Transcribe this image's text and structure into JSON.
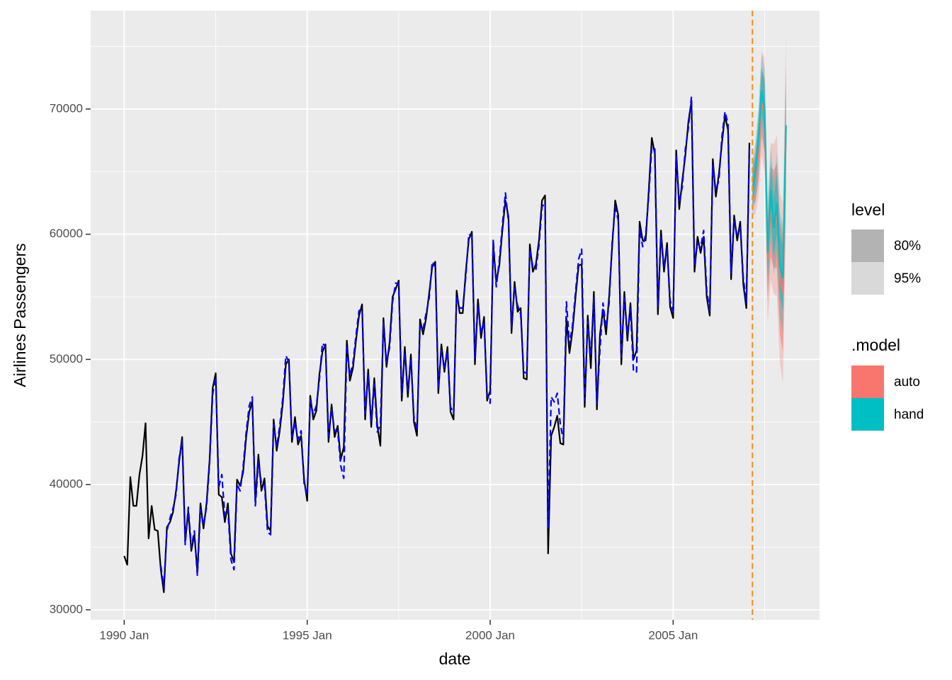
{
  "chart_data": {
    "type": "line",
    "xlabel": "date",
    "ylabel": "Airlines Passengers",
    "xlim": [
      "1989 Feb",
      "2009 Jan"
    ],
    "xticks": [
      "1990 Jan",
      "1995 Jan",
      "2000 Jan",
      "2005 Jan"
    ],
    "xminor_ticks": [
      "1992 Jul",
      "1997 Jul",
      "2002 Jul",
      "2007 Jul"
    ],
    "ylim": [
      29200,
      77860
    ],
    "yticks": [
      30000,
      40000,
      50000,
      60000,
      70000
    ],
    "yminor_ticks": [
      35000,
      45000,
      55000,
      65000,
      75000
    ],
    "grid": true,
    "vline": "2007 Mar",
    "vline_color": "#f5951d",
    "x": [
      "1990 Jan",
      "1990 Feb",
      "1990 Mar",
      "1990 Apr",
      "1990 May",
      "1990 Jun",
      "1990 Jul",
      "1990 Aug",
      "1990 Sep",
      "1990 Oct",
      "1990 Nov",
      "1990 Dec",
      "1991 Jan",
      "1991 Feb",
      "1991 Mar",
      "1991 Apr",
      "1991 May",
      "1991 Jun",
      "1991 Jul",
      "1991 Aug",
      "1991 Sep",
      "1991 Oct",
      "1991 Nov",
      "1991 Dec",
      "1992 Jan",
      "1992 Feb",
      "1992 Mar",
      "1992 Apr",
      "1992 May",
      "1992 Jun",
      "1992 Jul",
      "1992 Aug",
      "1992 Sep",
      "1992 Oct",
      "1992 Nov",
      "1992 Dec",
      "1993 Jan",
      "1993 Feb",
      "1993 Mar",
      "1993 Apr",
      "1993 May",
      "1993 Jun",
      "1993 Jul",
      "1993 Aug",
      "1993 Sep",
      "1993 Oct",
      "1993 Nov",
      "1993 Dec",
      "1994 Jan",
      "1994 Feb",
      "1994 Mar",
      "1994 Apr",
      "1994 May",
      "1994 Jun",
      "1994 Jul",
      "1994 Aug",
      "1994 Sep",
      "1994 Oct",
      "1994 Nov",
      "1994 Dec",
      "1995 Jan",
      "1995 Feb",
      "1995 Mar",
      "1995 Apr",
      "1995 May",
      "1995 Jun",
      "1995 Jul",
      "1995 Aug",
      "1995 Sep",
      "1995 Oct",
      "1995 Nov",
      "1995 Dec",
      "1996 Jan",
      "1996 Feb",
      "1996 Mar",
      "1996 Apr",
      "1996 May",
      "1996 Jun",
      "1996 Jul",
      "1996 Aug",
      "1996 Sep",
      "1996 Oct",
      "1996 Nov",
      "1996 Dec",
      "1997 Jan",
      "1997 Feb",
      "1997 Mar",
      "1997 Apr",
      "1997 May",
      "1997 Jun",
      "1997 Jul",
      "1997 Aug",
      "1997 Sep",
      "1997 Oct",
      "1997 Nov",
      "1997 Dec",
      "1998 Jan",
      "1998 Feb",
      "1998 Mar",
      "1998 Apr",
      "1998 May",
      "1998 Jun",
      "1998 Jul",
      "1998 Aug",
      "1998 Sep",
      "1998 Oct",
      "1998 Nov",
      "1998 Dec",
      "1999 Jan",
      "1999 Feb",
      "1999 Mar",
      "1999 Apr",
      "1999 May",
      "1999 Jun",
      "1999 Jul",
      "1999 Aug",
      "1999 Sep",
      "1999 Oct",
      "1999 Nov",
      "1999 Dec",
      "2000 Jan",
      "2000 Feb",
      "2000 Mar",
      "2000 Apr",
      "2000 May",
      "2000 Jun",
      "2000 Jul",
      "2000 Aug",
      "2000 Sep",
      "2000 Oct",
      "2000 Nov",
      "2000 Dec",
      "2001 Jan",
      "2001 Feb",
      "2001 Mar",
      "2001 Apr",
      "2001 May",
      "2001 Jun",
      "2001 Jul",
      "2001 Aug",
      "2001 Sep",
      "2001 Oct",
      "2001 Nov",
      "2001 Dec",
      "2002 Jan",
      "2002 Feb",
      "2002 Mar",
      "2002 Apr",
      "2002 May",
      "2002 Jun",
      "2002 Jul",
      "2002 Aug",
      "2002 Sep",
      "2002 Oct",
      "2002 Nov",
      "2002 Dec",
      "2003 Jan",
      "2003 Feb",
      "2003 Mar",
      "2003 Apr",
      "2003 May",
      "2003 Jun",
      "2003 Jul",
      "2003 Aug",
      "2003 Sep",
      "2003 Oct",
      "2003 Nov",
      "2003 Dec",
      "2004 Jan",
      "2004 Feb",
      "2004 Mar",
      "2004 Apr",
      "2004 May",
      "2004 Jun",
      "2004 Jul",
      "2004 Aug",
      "2004 Sep",
      "2004 Oct",
      "2004 Nov",
      "2004 Dec",
      "2005 Jan",
      "2005 Feb",
      "2005 Mar",
      "2005 Apr",
      "2005 May",
      "2005 Jun",
      "2005 Jul",
      "2005 Aug",
      "2005 Sep",
      "2005 Oct",
      "2005 Nov",
      "2005 Dec",
      "2006 Jan",
      "2006 Feb",
      "2006 Mar",
      "2006 Apr",
      "2006 May",
      "2006 Jun",
      "2006 Jul",
      "2006 Aug",
      "2006 Sep",
      "2006 Oct",
      "2006 Nov",
      "2006 Dec",
      "2007 Jan",
      "2007 Feb"
    ],
    "series": [
      {
        "color": "#000000",
        "dash": false,
        "values": [
          34300,
          33600,
          40600,
          38300,
          38300,
          40800,
          42300,
          44900,
          35700,
          38300,
          36400,
          36300,
          33200,
          31400,
          36600,
          37000,
          37800,
          39500,
          41800,
          43800,
          35500,
          37900,
          34700,
          36000,
          33000,
          38500,
          36500,
          38500,
          42000,
          47700,
          48900,
          39200,
          39000,
          37000,
          38500,
          34500,
          33800,
          40400,
          39900,
          41000,
          43800,
          45800,
          46600,
          38600,
          42400,
          39500,
          40500,
          36700,
          36300,
          45200,
          42700,
          44300,
          46500,
          49600,
          50000,
          43400,
          45400,
          43200,
          43900,
          40400,
          38700,
          47100,
          45200,
          45900,
          48800,
          50600,
          51200,
          43400,
          46400,
          43800,
          44700,
          42000,
          43000,
          51500,
          48300,
          49300,
          51500,
          53500,
          54400,
          45200,
          49200,
          44600,
          48500,
          44700,
          43100,
          53300,
          49400,
          51300,
          55000,
          55600,
          56300,
          46700,
          51000,
          47000,
          50400,
          45000,
          43900,
          53200,
          52000,
          53300,
          55300,
          57400,
          57800,
          47300,
          51200,
          49000,
          51000,
          45800,
          45200,
          55500,
          53700,
          53700,
          57000,
          59600,
          60200,
          49600,
          54800,
          51700,
          53400,
          46700,
          47500,
          59100,
          56200,
          57500,
          60300,
          62700,
          61400,
          52100,
          56200,
          53800,
          54100,
          48500,
          48400,
          59200,
          57000,
          57600,
          59500,
          62700,
          63100,
          34500,
          43900,
          44600,
          45500,
          43300,
          43200,
          53300,
          50500,
          52300,
          55000,
          57500,
          57600,
          46200,
          53500,
          49300,
          55400,
          46000,
          52000,
          54000,
          52000,
          55000,
          59000,
          62700,
          61500,
          49600,
          55400,
          51500,
          54500,
          50000,
          50700,
          61000,
          59500,
          59500,
          63500,
          67700,
          66400,
          53600,
          60300,
          57000,
          59300,
          54200,
          53300,
          66700,
          62000,
          64300,
          66300,
          69000,
          70600,
          57000,
          59800,
          58500,
          59800,
          55000,
          53500,
          66000,
          63000,
          64800,
          67300,
          69500,
          68300,
          56400,
          61500,
          59500,
          61000,
          56000,
          54100,
          67300
        ]
      },
      {
        "color": "#0000ff",
        "dash": true,
        "values": [
          null,
          null,
          null,
          null,
          null,
          null,
          null,
          null,
          null,
          null,
          null,
          null,
          33500,
          31800,
          36300,
          37300,
          38100,
          39200,
          42100,
          43500,
          35200,
          38200,
          35000,
          36300,
          32700,
          38000,
          36800,
          38200,
          41700,
          47200,
          48600,
          39800,
          40800,
          37500,
          38000,
          34000,
          33200,
          40000,
          39500,
          41400,
          44200,
          46300,
          47000,
          38300,
          41800,
          40100,
          40000,
          36200,
          36000,
          44800,
          43000,
          44700,
          46900,
          50300,
          49800,
          43800,
          44900,
          43600,
          44300,
          40000,
          39200,
          46700,
          45600,
          46300,
          48400,
          51300,
          51000,
          43900,
          46000,
          44300,
          44300,
          41500,
          40500,
          51100,
          48700,
          49700,
          51900,
          53900,
          54000,
          45700,
          48700,
          45100,
          48000,
          44200,
          44800,
          52900,
          49800,
          50900,
          54600,
          56100,
          56000,
          47200,
          50500,
          47500,
          50000,
          45400,
          44300,
          52700,
          52400,
          53700,
          54900,
          57800,
          57400,
          47700,
          50700,
          49400,
          50600,
          46200,
          45700,
          55100,
          54100,
          54100,
          56600,
          60000,
          59800,
          50100,
          54300,
          52100,
          53000,
          47200,
          46500,
          59600,
          55800,
          57900,
          60700,
          63300,
          61000,
          52600,
          55700,
          54300,
          53600,
          49000,
          48900,
          58800,
          57400,
          57200,
          59100,
          62200,
          62500,
          36500,
          47000,
          46600,
          47300,
          44800,
          43600,
          54600,
          51200,
          52700,
          55400,
          58000,
          58800,
          46700,
          53000,
          50300,
          54900,
          46500,
          50800,
          54500,
          52500,
          54500,
          59400,
          62200,
          61100,
          50200,
          54900,
          52000,
          54000,
          49000,
          49000,
          60500,
          59000,
          60000,
          63100,
          67000,
          66800,
          54200,
          59800,
          57400,
          58900,
          54700,
          53800,
          66200,
          62500,
          63800,
          66800,
          68500,
          71000,
          57500,
          59300,
          58900,
          60300,
          55500,
          53900,
          65500,
          63500,
          64300,
          67800,
          69800,
          68800,
          56900,
          61000,
          59900,
          60500,
          56500,
          54500,
          66800
        ]
      }
    ],
    "forecast_x": [
      "2007 Mar",
      "2007 Apr",
      "2007 May",
      "2007 Jun",
      "2007 Jul",
      "2007 Aug",
      "2007 Sep",
      "2007 Oct",
      "2007 Nov",
      "2007 Dec",
      "2008 Jan",
      "2008 Feb"
    ],
    "level_title": "level",
    "levels": [
      {
        "value": 80,
        "label": "80%"
      },
      {
        "value": 95,
        "label": "95%"
      }
    ],
    "level_colors": [
      "#b3b3b3",
      "#d9d9d9"
    ],
    "model_title": ".model",
    "forecasts": [
      {
        "name": "auto",
        "color": "#f8766d",
        "values": [
          63800,
          64500,
          66500,
          70500,
          69500,
          58000,
          61800,
          61200,
          61500,
          56500,
          55300,
          68500
        ],
        "lower80": [
          62300,
          62600,
          64200,
          67800,
          66500,
          54700,
          58200,
          57300,
          57300,
          52000,
          50600,
          63500
        ],
        "upper80": [
          65300,
          66400,
          68800,
          73200,
          72500,
          61300,
          65400,
          65100,
          65700,
          61000,
          60000,
          73500
        ],
        "lower95": [
          61500,
          61600,
          63000,
          66400,
          64900,
          52900,
          56300,
          55200,
          55100,
          49700,
          48100,
          60900
        ],
        "upper95": [
          66100,
          67400,
          70000,
          74600,
          74100,
          63100,
          67300,
          67200,
          67900,
          63300,
          62500,
          76100
        ]
      },
      {
        "name": "hand",
        "color": "#00bfc4",
        "values": [
          63500,
          65000,
          67500,
          71500,
          70000,
          58500,
          63500,
          60500,
          62500,
          57500,
          56500,
          68700
        ],
        "lower80": [
          62300,
          63600,
          65900,
          69700,
          68000,
          56400,
          61300,
          58200,
          60100,
          55000,
          53900,
          66000
        ],
        "upper80": [
          64700,
          66400,
          69100,
          73300,
          72000,
          60600,
          65700,
          62800,
          64900,
          60000,
          59100,
          71400
        ],
        "lower95": [
          61500,
          62700,
          64900,
          68600,
          66800,
          55100,
          59900,
          56700,
          58500,
          53300,
          52200,
          64200
        ],
        "upper95": [
          65500,
          67300,
          70100,
          74400,
          73200,
          61900,
          67100,
          64300,
          66500,
          61700,
          60800,
          73200
        ]
      }
    ]
  }
}
